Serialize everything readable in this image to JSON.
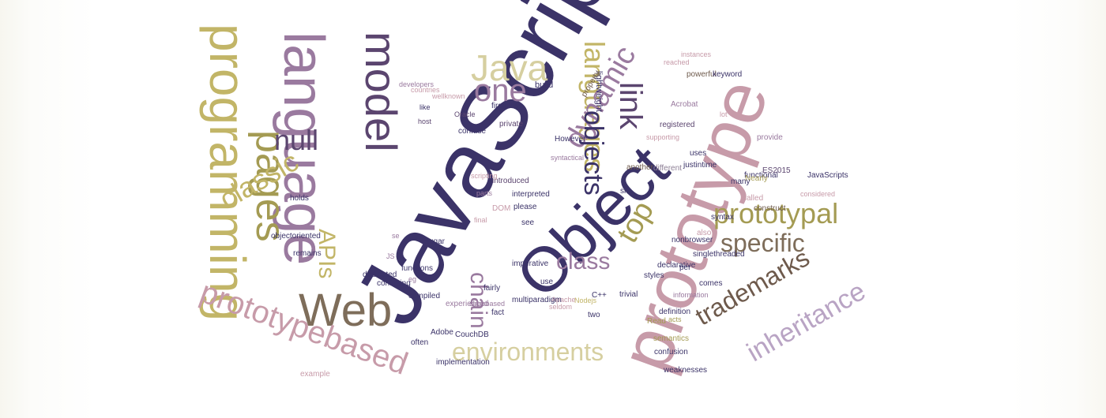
{
  "palette": {
    "navy": "#3b3368",
    "plum": "#5b456f",
    "mauve": "#9a7a9f",
    "rose": "#c79ba9",
    "pink": "#d2aeb7",
    "olive": "#a49b53",
    "mustard": "#c2b567",
    "sand": "#d6cfa0",
    "brown": "#6e5a4c",
    "taupe": "#7e6d5a",
    "lavender": "#b9a4c4",
    "dusty": "#8d7f95"
  },
  "words": {
    "javascript": "JavaScript",
    "prototype": "prototype",
    "object": "Object",
    "language": "language",
    "programming": "programming",
    "model": "model",
    "web": "Web",
    "pages": "pages",
    "java": "Java",
    "languages": "languages",
    "link": "link",
    "one": "one",
    "dynamic": "dynamic",
    "objects": "objects",
    "null": "null",
    "classic": "classic",
    "apis": "APIs",
    "top": "top",
    "prototypal": "prototypal",
    "specific": "specific",
    "class": "class",
    "chain": "chain",
    "trademarks": "trademarks",
    "inheritance": "inheritance",
    "prototypebased": "prototypebased",
    "environments": "environments",
    "lightweight": "lightweight",
    "property": "property",
    "build": "build",
    "however": "However",
    "private": "private",
    "firstclass": "firstclass",
    "introduced": "introduced",
    "parts": "parts",
    "scripting": "scripting",
    "interpreted": "interpreted",
    "please": "please",
    "see": "see",
    "sits": "sits",
    "another": "another",
    "syntactical": "syntactical",
    "justintime": "justintime",
    "uses": "uses",
    "supporting": "supporting",
    "registered": "registered",
    "different": "different",
    "acrobat": "Acrobat",
    "powerful": "powerful",
    "keyword": "keyword",
    "instances": "instances",
    "reached": "reached",
    "lot": "lot",
    "provide": "provide",
    "es2015": "ES2015",
    "functional": "functional",
    "construct": "construct",
    "nearly": "Nearly",
    "many": "many",
    "called": "called",
    "javascripts": "JavaScripts",
    "considered": "considered",
    "syntax": "syntax",
    "also": "also",
    "nonbrowser": "nonbrowser",
    "singlethreaded": "singlethreaded",
    "per": "per",
    "declarative": "declarative",
    "styles": "styles",
    "comes": "comes",
    "information": "information",
    "definition": "definition",
    "acts": "acts",
    "read": "Read",
    "semantics": "semantics",
    "confusion": "confusion",
    "weaknesses": "weaknesses",
    "trivial": "trivial",
    "cpp": "C++",
    "two": "two",
    "nodejs": "Nodejs",
    "apache": "Apache",
    "seldom": "seldom",
    "use": "use",
    "imperative": "imperative",
    "fairly": "fairly",
    "multiparadigm": "multiparadigm",
    "fact": "fact",
    "classbased": "classbased",
    "couchdb": "CouchDB",
    "adobe": "Adobe",
    "often": "often",
    "implementation": "implementation",
    "experienced": "experienced",
    "compiled": "compiled",
    "dedicated": "dedicated",
    "functions": "functions",
    "eg": "eg",
    "confusing": "confusing",
    "remains": "remains",
    "objectoriented": "objectoriented",
    "holds": "holds",
    "se": "se",
    "js": "JS",
    "dom": "DOM",
    "final": "final",
    "sugar": "sugar",
    "developers": "developers",
    "countries": "countries",
    "wellknown": "wellknown",
    "host": "host",
    "like": "like",
    "oracle": "Oracle",
    "confuse": "confuse",
    "example": "example"
  }
}
